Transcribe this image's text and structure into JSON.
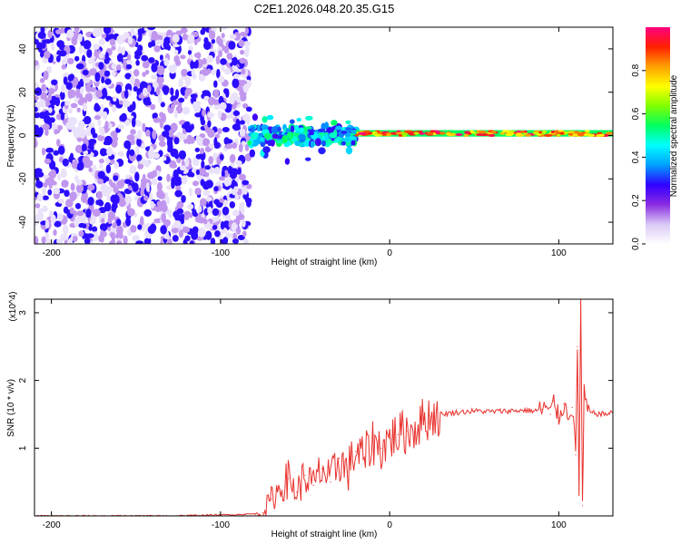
{
  "title": "C2E1.2026.048.20.35.G15",
  "chart_data": [
    {
      "type": "heatmap",
      "name": "spectrogram",
      "title": "C2E1.2026.048.20.35.G15",
      "xlabel": "Height of straight line (km)",
      "ylabel": "Frequency (Hz)",
      "xlim": [
        -210,
        132
      ],
      "ylim": [
        -50,
        50
      ],
      "xticks": [
        -200,
        -100,
        0,
        100
      ],
      "yticks": [
        -40,
        -20,
        0,
        20,
        40
      ],
      "colorbar": {
        "label": "Normalized spectral amplitude",
        "range": [
          0.0,
          1.0
        ],
        "ticks": [
          0.0,
          0.2,
          0.4,
          0.6,
          0.8
        ],
        "colors": [
          "#ffffff",
          "#d9c8f5",
          "#8a2be2",
          "#3000ff",
          "#00a0ff",
          "#00ffff",
          "#00ff60",
          "#80ff00",
          "#ffff00",
          "#ffa000",
          "#ff2000",
          "#ff0080"
        ]
      },
      "regions": [
        {
          "x_range": [
            -210,
            -83
          ],
          "content": "broadband noise, amplitude 0.0-0.3"
        },
        {
          "x_range": [
            -83,
            -20
          ],
          "content": "scattered signal near 0 Hz, amplitude 0.2-0.5"
        },
        {
          "x_range": [
            -20,
            132
          ],
          "content": "stable line near 1 Hz, amplitude 0.6-1.0"
        }
      ]
    },
    {
      "type": "line",
      "name": "snr",
      "xlabel": "Height of straight line (km)",
      "ylabel": "SNR (10 * v/v)",
      "y_multiplier": "(x10^4)",
      "xlim": [
        -210,
        132
      ],
      "ylim": [
        0,
        3.2
      ],
      "xticks": [
        -200,
        -100,
        0,
        100
      ],
      "yticks": [
        1,
        2,
        3
      ],
      "color": "#e8322d",
      "series": [
        {
          "name": "SNR",
          "x": [
            -210,
            -190,
            -170,
            -150,
            -130,
            -110,
            -90,
            -80,
            -75,
            -70,
            -65,
            -60,
            -55,
            -50,
            -45,
            -40,
            -35,
            -30,
            -25,
            -20,
            -15,
            -10,
            -5,
            0,
            5,
            10,
            15,
            20,
            25,
            30,
            40,
            50,
            60,
            70,
            80,
            85,
            90,
            92,
            95,
            97,
            100,
            103,
            105,
            108,
            110,
            111,
            112,
            113,
            114,
            115,
            117,
            120,
            125,
            132
          ],
          "y": [
            0.0,
            0.0,
            0.0,
            0.0,
            0.0,
            0.01,
            0.02,
            0.03,
            0.05,
            0.25,
            0.4,
            0.55,
            0.35,
            0.6,
            0.45,
            0.7,
            0.5,
            0.85,
            0.65,
            0.95,
            0.85,
            1.1,
            1.0,
            1.15,
            1.2,
            1.25,
            1.3,
            1.42,
            1.48,
            1.5,
            1.53,
            1.55,
            1.54,
            1.55,
            1.56,
            1.55,
            1.57,
            1.62,
            1.5,
            1.7,
            1.45,
            1.65,
            1.5,
            1.6,
            0.9,
            2.5,
            0.4,
            3.2,
            0.15,
            1.8,
            1.55,
            1.52,
            1.5,
            1.52
          ]
        }
      ]
    }
  ]
}
